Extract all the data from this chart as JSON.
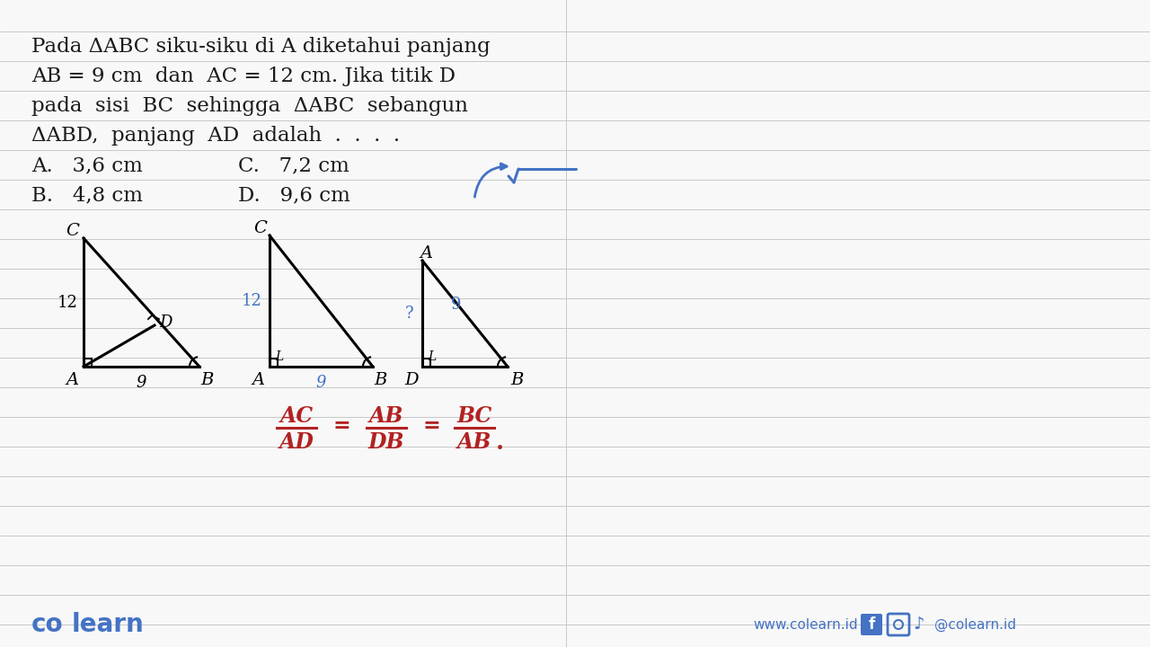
{
  "bg_color": "#f8f8f8",
  "line_color": "#c8c8c8",
  "text_color": "#1a1a1a",
  "blue_color": "#4472c4",
  "red_color": "#b22222",
  "footer_left1": "co",
  "footer_left2": "learn",
  "footer_right": "www.colearn.id",
  "footer_social": "@colearn.id"
}
